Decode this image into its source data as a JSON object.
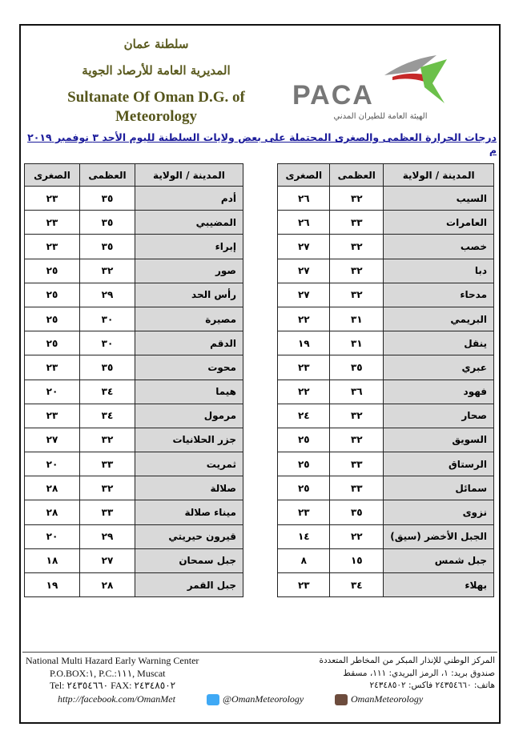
{
  "header": {
    "ar_line1": "سلطنة عمان",
    "ar_line2": "المديرية العامة للأرصاد الجوية",
    "en_title": "Sultanate Of Oman D.G. of Meteorology",
    "logo_text": "PACA",
    "logo_subtitle": "الهيئة العامة للطيران المدني"
  },
  "title": "درجات الحرارة العظمى والصغرى المحتملة على بعض ولايات السلطنة لليوم الأحد ٣ نوفمبر ٢٠١٩ م",
  "columns": {
    "city": "المدينة / الولاية",
    "max": "العظمى",
    "min": "الصغرى"
  },
  "right_table": [
    {
      "city": "السيب",
      "max": "٣٢",
      "min": "٢٦"
    },
    {
      "city": "العامرات",
      "max": "٣٣",
      "min": "٢٦"
    },
    {
      "city": "خصب",
      "max": "٣٢",
      "min": "٢٧"
    },
    {
      "city": "دبا",
      "max": "٣٢",
      "min": "٢٧"
    },
    {
      "city": "مدحاء",
      "max": "٣٢",
      "min": "٢٧"
    },
    {
      "city": "البريمي",
      "max": "٣١",
      "min": "٢٢"
    },
    {
      "city": "ينقل",
      "max": "٣١",
      "min": "١٩"
    },
    {
      "city": "عبري",
      "max": "٣٥",
      "min": "٢٣"
    },
    {
      "city": "فهود",
      "max": "٣٦",
      "min": "٢٢"
    },
    {
      "city": "صحار",
      "max": "٣٢",
      "min": "٢٤"
    },
    {
      "city": "السويق",
      "max": "٣٢",
      "min": "٢٥"
    },
    {
      "city": "الرستاق",
      "max": "٣٣",
      "min": "٢٥"
    },
    {
      "city": "سمائل",
      "max": "٣٣",
      "min": "٢٥"
    },
    {
      "city": "نزوى",
      "max": "٣٥",
      "min": "٢٣"
    },
    {
      "city": "الجبل الأخضر (سيق)",
      "max": "٢٢",
      "min": "١٤"
    },
    {
      "city": "جبل شمس",
      "max": "١٥",
      "min": "٨"
    },
    {
      "city": "بهلاء",
      "max": "٣٤",
      "min": "٢٣"
    }
  ],
  "left_table": [
    {
      "city": "أدم",
      "max": "٣٥",
      "min": "٢٣"
    },
    {
      "city": "المضيبي",
      "max": "٣٥",
      "min": "٢٣"
    },
    {
      "city": "إبراء",
      "max": "٣٥",
      "min": "٢٣"
    },
    {
      "city": "صور",
      "max": "٣٢",
      "min": "٢٥"
    },
    {
      "city": "رأس الحد",
      "max": "٢٩",
      "min": "٢٥"
    },
    {
      "city": "مصيرة",
      "max": "٣٠",
      "min": "٢٥"
    },
    {
      "city": "الدقم",
      "max": "٣٠",
      "min": "٢٥"
    },
    {
      "city": "محوت",
      "max": "٣٥",
      "min": "٢٣"
    },
    {
      "city": "هيما",
      "max": "٣٤",
      "min": "٢٠"
    },
    {
      "city": "مرمول",
      "max": "٣٤",
      "min": "٢٣"
    },
    {
      "city": "جزر الحلانيات",
      "max": "٣٢",
      "min": "٢٧"
    },
    {
      "city": "ثمريت",
      "max": "٣٣",
      "min": "٢٠"
    },
    {
      "city": "صلالة",
      "max": "٣٢",
      "min": "٢٨"
    },
    {
      "city": "ميناء صلالة",
      "max": "٣٣",
      "min": "٢٨"
    },
    {
      "city": "قيرون حيريتي",
      "max": "٢٩",
      "min": "٢٠"
    },
    {
      "city": "جبل سمحان",
      "max": "٢٧",
      "min": "١٨"
    },
    {
      "city": "جبل القمر",
      "max": "٢٨",
      "min": "١٩"
    }
  ],
  "footer": {
    "en_center": "National Multi Hazard Early Warning Center",
    "en_pobox": "P.O.BOX:١, P.C.:١١١, Muscat",
    "en_tel": "Tel: ٢٤٣٥٤٦٦٠ FAX: ٢٤٣٤٨٥٠٢",
    "facebook": "http://facebook.com/OmanMet",
    "twitter": "@OmanMeteorology",
    "instagram": "OmanMeteorology",
    "ar_center": "المركز الوطني للإنذار المبكر من المخاطر المتعددة",
    "ar_pobox": "صندوق بريد: ١، الرمز البريدي: ١١١، مسقط",
    "ar_tel": "هاتف: ٢٤٣٥٤٦٦٠ فاكس: ٢٤٣٤٨٥٠٢"
  }
}
